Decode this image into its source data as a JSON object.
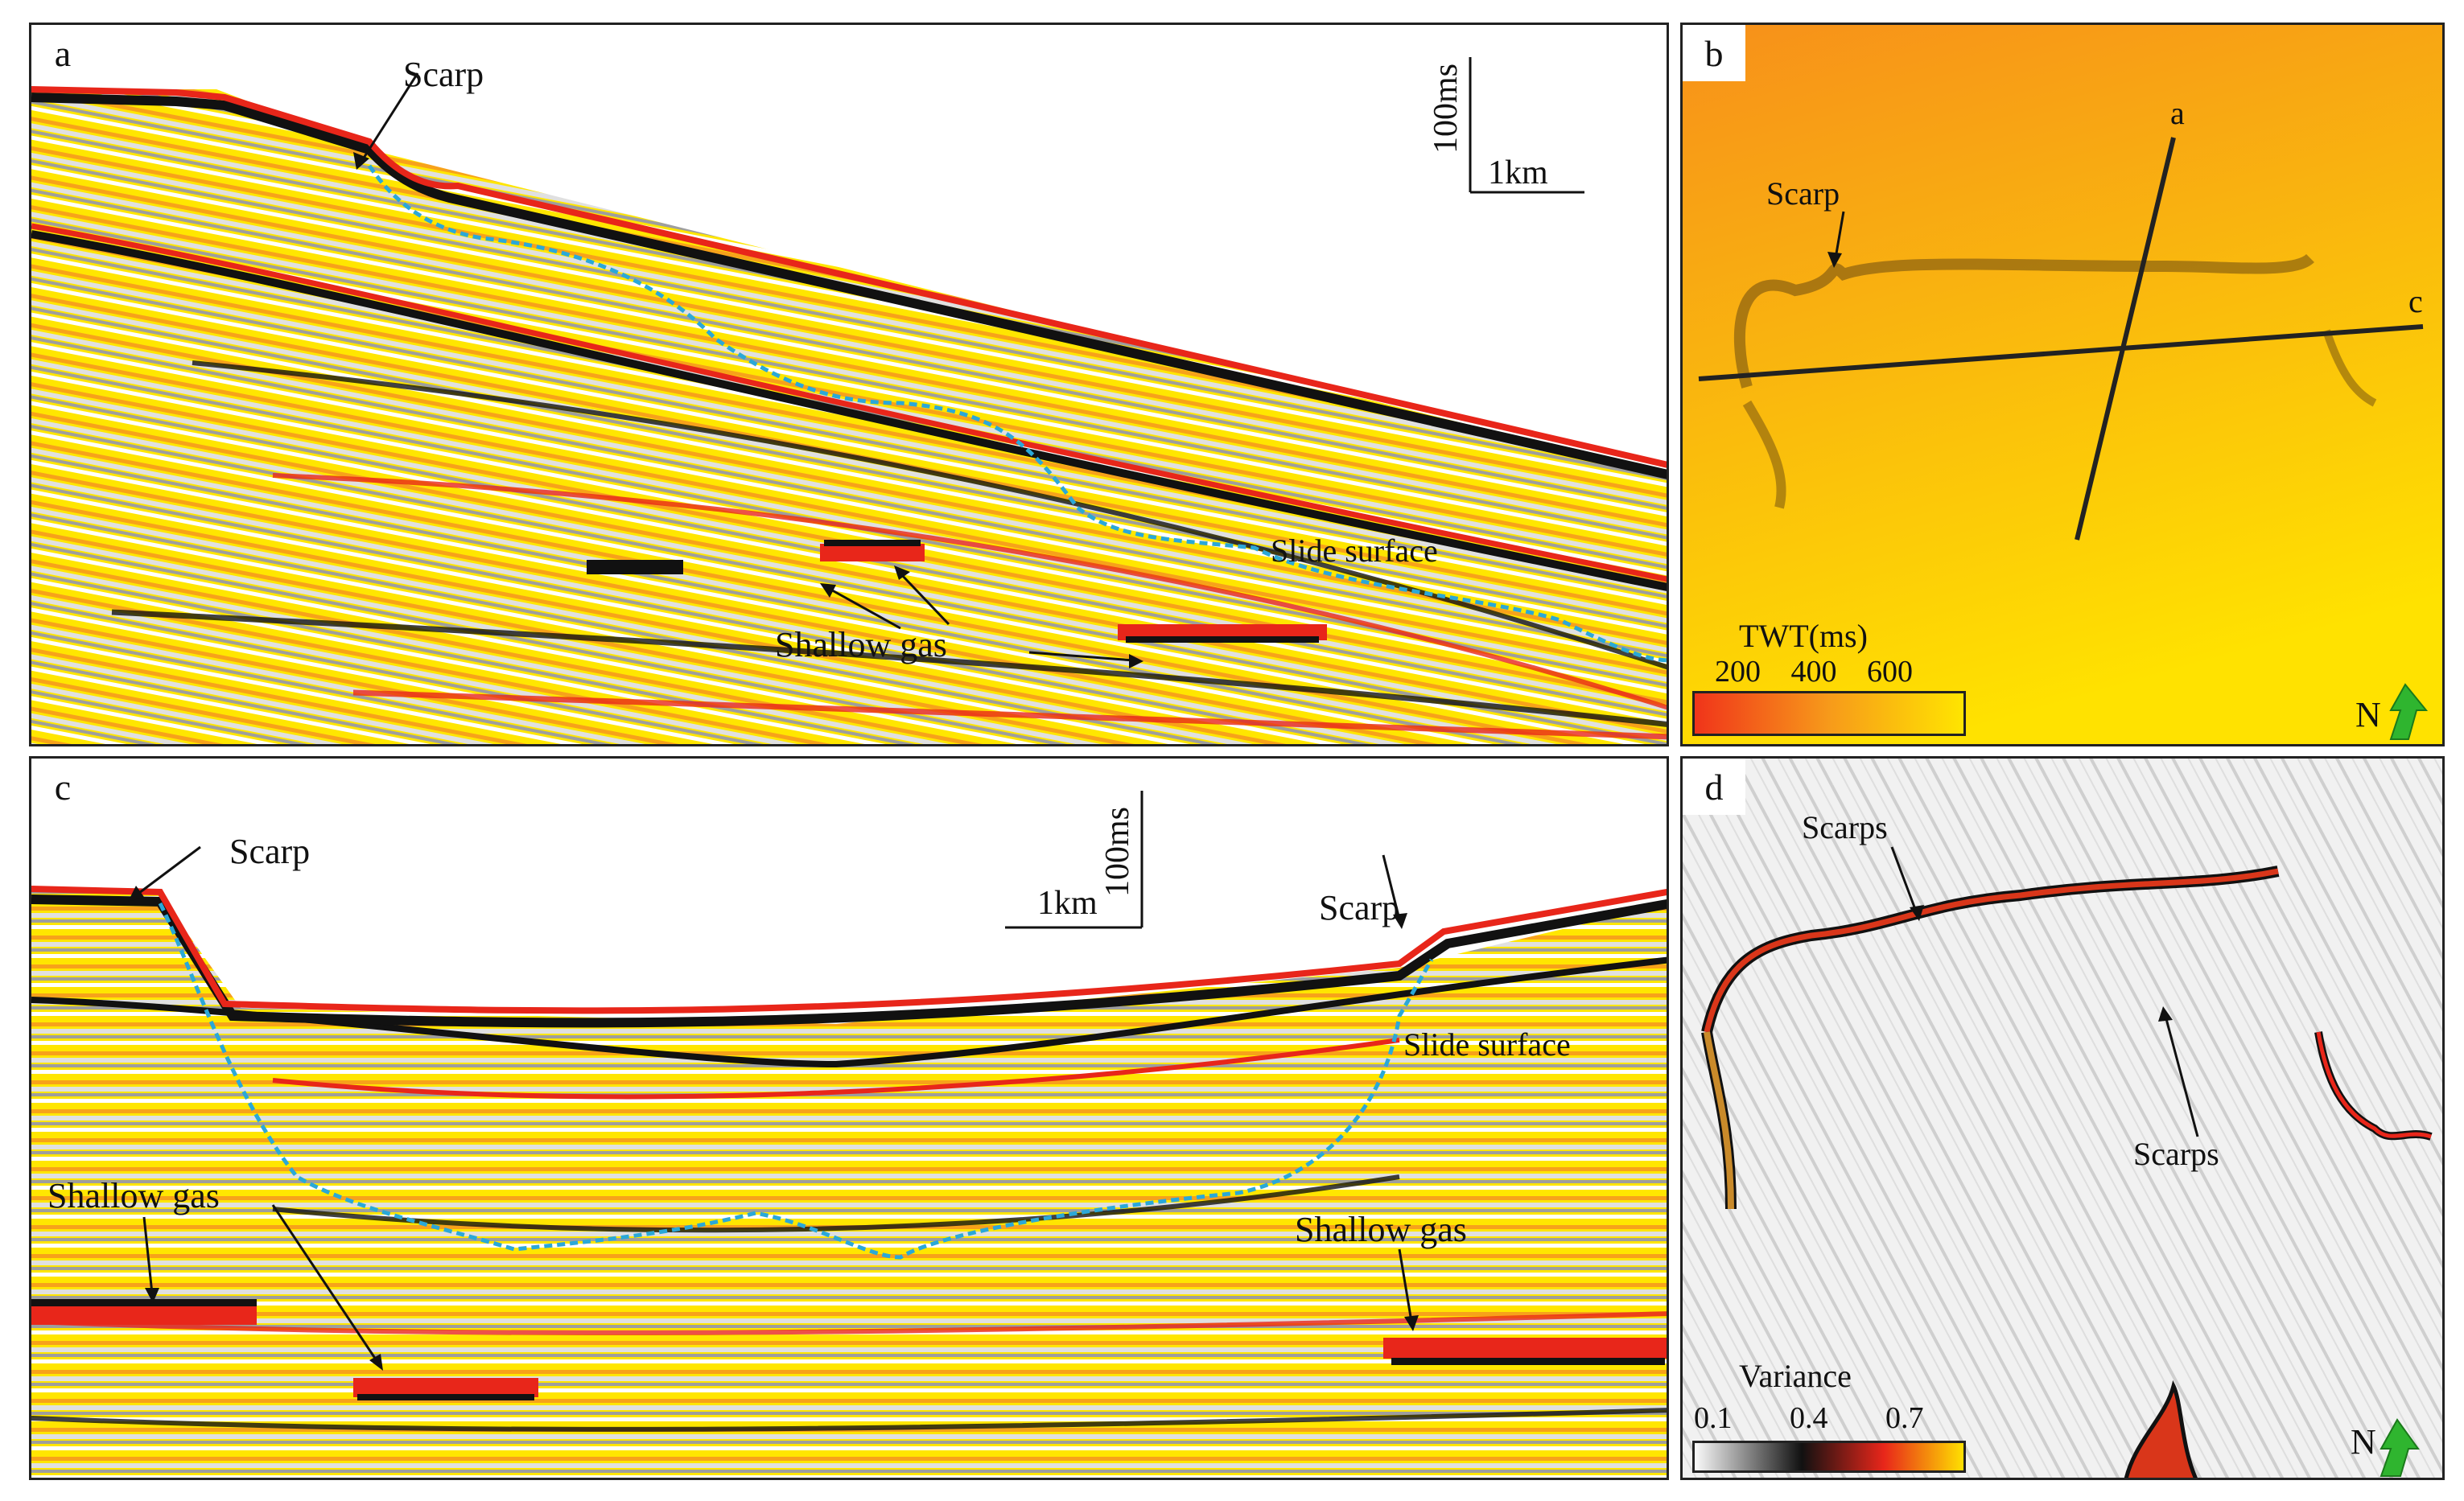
{
  "panels": {
    "a": {
      "letter": "a",
      "labels": {
        "scarp": "Scarp",
        "slide_surface": "Slide surface",
        "shallow_gas": "Shallow gas"
      },
      "scale": {
        "vertical": "100ms",
        "horizontal": "1km"
      }
    },
    "b": {
      "letter": "b",
      "labels": {
        "scarp": "Scarp",
        "line_a": "a",
        "line_c": "c"
      },
      "legend": {
        "title": "TWT(ms)",
        "ticks": [
          "200",
          "400",
          "600"
        ]
      },
      "north": "N"
    },
    "c": {
      "letter": "c",
      "labels": {
        "scarp_left": "Scarp",
        "scarp_right": "Scarp",
        "slide_surface": "Slide surface",
        "shallow_gas_left": "Shallow gas",
        "shallow_gas_right": "Shallow gas"
      },
      "scale": {
        "vertical": "100ms",
        "horizontal": "1km"
      }
    },
    "d": {
      "letter": "d",
      "labels": {
        "scarps_top": "Scarps",
        "scarps_right": "Scarps"
      },
      "legend": {
        "title": "Variance",
        "ticks": [
          "0.1",
          "0.4",
          "0.7"
        ]
      },
      "north": "N"
    }
  },
  "colors": {
    "seismic_red": "#e8261a",
    "seismic_black": "#111111",
    "seismic_yellow": "#ffe600",
    "seismic_orange": "#f7a21a",
    "seismic_grey": "#bdbdbd",
    "slide_surface_line": "#2aa8d8",
    "north_arrow": "#2fb52f"
  }
}
